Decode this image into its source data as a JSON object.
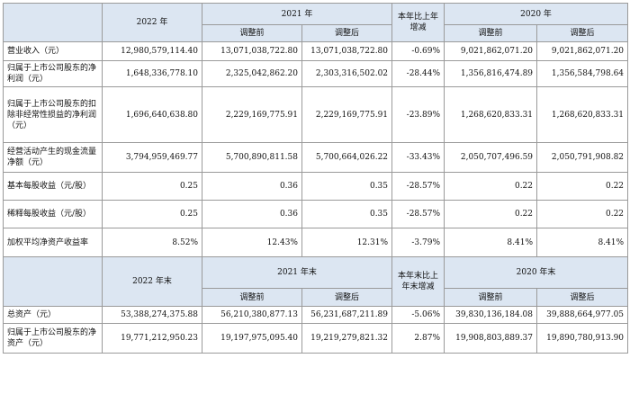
{
  "table": {
    "header1": {
      "col_2022": "2022 年",
      "col_2021": "2021 年",
      "col_change": "本年比上年增减",
      "col_2020": "2020 年"
    },
    "header2": {
      "before": "调整前",
      "after": "调整后"
    },
    "rows": [
      {
        "label": "营业收入（元）",
        "v2022": "12,980,579,114.40",
        "v2021_before": "13,071,038,722.80",
        "v2021_after": "13,071,038,722.80",
        "change": "-0.69%",
        "v2020_before": "9,021,862,071.20",
        "v2020_after": "9,021,862,071.20"
      },
      {
        "label": "归属于上市公司股东的净利润（元）",
        "v2022": "1,648,336,778.10",
        "v2021_before": "2,325,042,862.20",
        "v2021_after": "2,303,316,502.02",
        "change": "-28.44%",
        "v2020_before": "1,356,816,474.89",
        "v2020_after": "1,356,584,798.64"
      },
      {
        "label": "归属于上市公司股东的扣除非经常性损益的净利润（元）",
        "v2022": "1,696,640,638.80",
        "v2021_before": "2,229,169,775.91",
        "v2021_after": "2,229,169,775.91",
        "change": "-23.89%",
        "v2020_before": "1,268,620,833.31",
        "v2020_after": "1,268,620,833.31"
      },
      {
        "label": "经营活动产生的现金流量净额（元）",
        "v2022": "3,794,959,469.77",
        "v2021_before": "5,700,890,811.58",
        "v2021_after": "5,700,664,026.22",
        "change": "-33.43%",
        "v2020_before": "2,050,707,496.59",
        "v2020_after": "2,050,791,908.82"
      },
      {
        "label": "基本每股收益（元/股）",
        "v2022": "0.25",
        "v2021_before": "0.36",
        "v2021_after": "0.35",
        "change": "-28.57%",
        "v2020_before": "0.22",
        "v2020_after": "0.22"
      },
      {
        "label": "稀释每股收益（元/股）",
        "v2022": "0.25",
        "v2021_before": "0.36",
        "v2021_after": "0.35",
        "change": "-28.57%",
        "v2020_before": "0.22",
        "v2020_after": "0.22"
      },
      {
        "label": "加权平均净资产收益率",
        "v2022": "8.52%",
        "v2021_before": "12.43%",
        "v2021_after": "12.31%",
        "change": "-3.79%",
        "v2020_before": "8.41%",
        "v2020_after": "8.41%"
      }
    ],
    "header3": {
      "col_2022": "2022 年末",
      "col_2021": "2021 年末",
      "col_change": "本年末比上年末增减",
      "col_2020": "2020 年末"
    },
    "header4": {
      "before": "调整前",
      "after": "调整后"
    },
    "rows2": [
      {
        "label": "总资产（元）",
        "v2022": "53,388,274,375.88",
        "v2021_before": "56,210,380,877.13",
        "v2021_after": "56,231,687,211.89",
        "change": "-5.06%",
        "v2020_before": "39,830,136,184.08",
        "v2020_after": "39,888,664,977.05"
      },
      {
        "label": "归属于上市公司股东的净资产（元）",
        "v2022": "19,771,212,950.23",
        "v2021_before": "19,197,975,095.40",
        "v2021_after": "19,219,279,821.32",
        "change": "2.87%",
        "v2020_before": "19,908,803,889.37",
        "v2020_after": "19,890,780,913.90"
      }
    ]
  }
}
